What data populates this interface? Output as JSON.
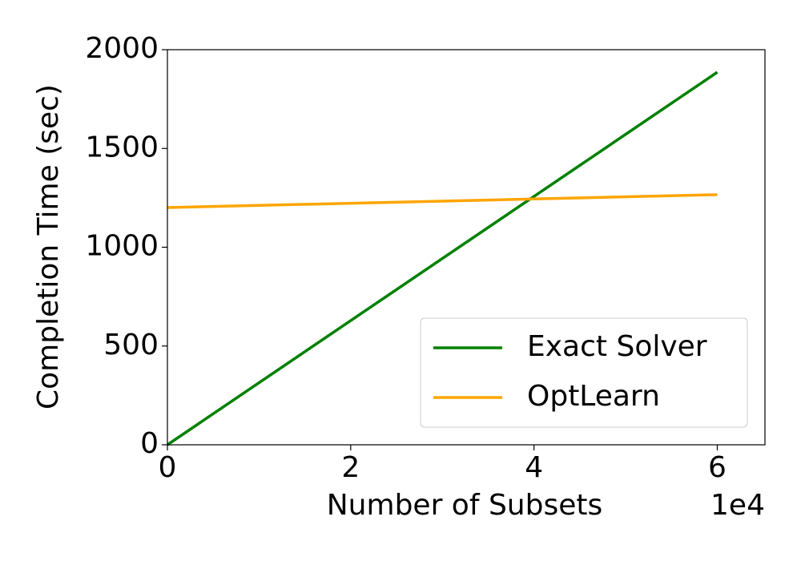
{
  "chart_data": {
    "type": "line",
    "xlabel": "Number of Subsets",
    "ylabel": "Completion Time (sec)",
    "x_offset_label": "1e4",
    "series": [
      {
        "name": "Exact Solver",
        "color": "#008000",
        "x": [
          0,
          6
        ],
        "values": [
          0,
          1886
        ]
      },
      {
        "name": "OptLearn",
        "color": "#ffa500",
        "x": [
          0,
          6
        ],
        "values": [
          1201,
          1266
        ]
      }
    ],
    "xlim": [
      0,
      6.52
    ],
    "xticks": [
      0,
      2,
      4,
      6
    ],
    "ylim": [
      0,
      2000
    ],
    "yticks": [
      0,
      500,
      1000,
      1500,
      2000
    ],
    "legend": "lower right"
  }
}
